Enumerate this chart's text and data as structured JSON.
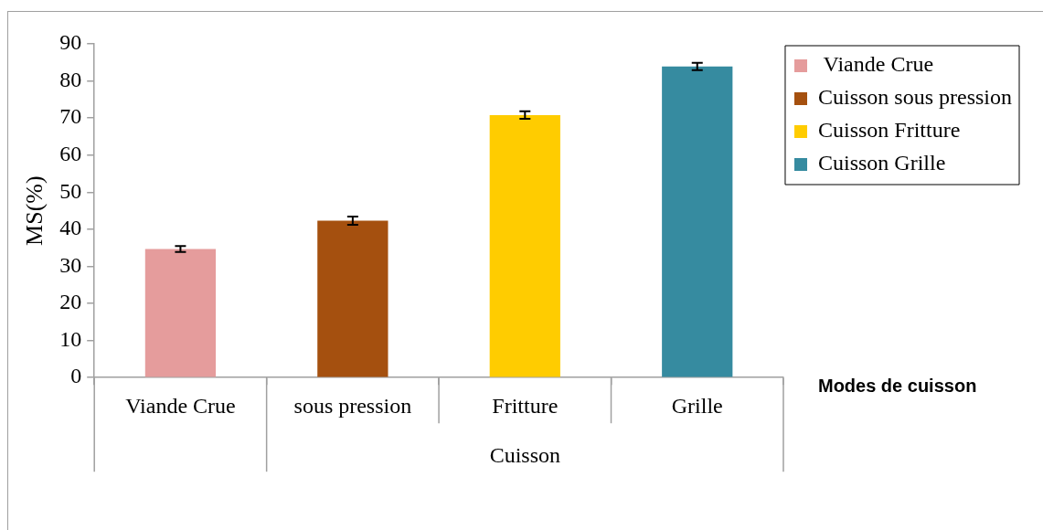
{
  "chart_data": {
    "type": "bar",
    "xlabel": "Modes de cuisson",
    "ylabel": "MS(%)",
    "categories": [
      "Viande Crue",
      "sous pression",
      "Fritture",
      "Grille"
    ],
    "series": [
      {
        "name": " Viande Crue",
        "color": "#e59c9c",
        "values": [
          34.7,
          null,
          null,
          null
        ],
        "errors": [
          0.8,
          null,
          null,
          null
        ]
      },
      {
        "name": "Cuisson sous pression",
        "color": "#a5500f",
        "values": [
          null,
          42.3,
          null,
          null
        ],
        "errors": [
          null,
          1.1,
          null,
          null
        ]
      },
      {
        "name": "Cuisson Fritture",
        "color": "#ffcc00",
        "values": [
          null,
          null,
          70.8,
          null
        ],
        "errors": [
          null,
          null,
          1.0,
          null
        ]
      },
      {
        "name": "Cuisson Grille",
        "color": "#368ba0",
        "values": [
          null,
          null,
          null,
          83.9
        ],
        "errors": [
          null,
          null,
          null,
          1.0
        ]
      }
    ],
    "annotations": [
      "Cuisson"
    ],
    "ylim": [
      0,
      90
    ],
    "yticks": [
      0,
      10,
      20,
      30,
      40,
      50,
      60,
      70,
      80,
      90
    ],
    "grid": false,
    "legend": "top right"
  }
}
